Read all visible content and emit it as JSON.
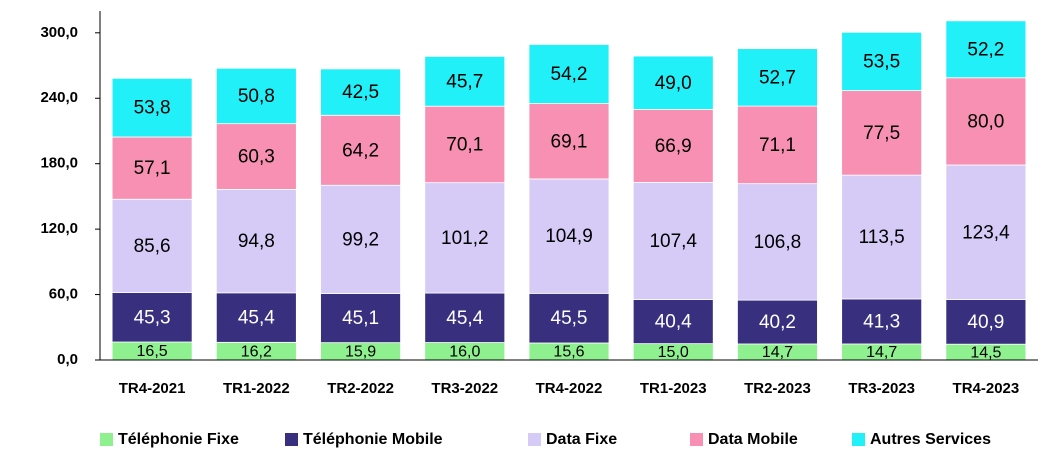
{
  "chart_data": {
    "type": "stacked_bar",
    "categories": [
      "TR4-2021",
      "TR1-2022",
      "TR2-2022",
      "TR3-2022",
      "TR4-2022",
      "TR1-2023",
      "TR2-2023",
      "TR3-2023",
      "TR4-2023"
    ],
    "series": [
      {
        "name": "Téléphonie Fixe",
        "color": "#8ef08e",
        "values": [
          16.5,
          16.2,
          15.9,
          16.0,
          15.6,
          15.0,
          14.7,
          14.7,
          14.5
        ],
        "value_labels": [
          "16,5",
          "16,2",
          "15,9",
          "16,0",
          "15,6",
          "15,0",
          "14,7",
          "14,7",
          "14,5"
        ]
      },
      {
        "name": "Téléphonie Mobile",
        "color": "#38307f",
        "values": [
          45.3,
          45.4,
          45.1,
          45.4,
          45.5,
          40.4,
          40.2,
          41.3,
          40.9
        ],
        "value_labels": [
          "45,3",
          "45,4",
          "45,1",
          "45,4",
          "45,5",
          "40,4",
          "40,2",
          "41,3",
          "40,9"
        ]
      },
      {
        "name": "Data Fixe",
        "color": "#d6cbf6",
        "values": [
          85.6,
          94.8,
          99.2,
          101.2,
          104.9,
          107.4,
          106.8,
          113.5,
          123.4
        ],
        "value_labels": [
          "85,6",
          "94,8",
          "99,2",
          "101,2",
          "104,9",
          "107,4",
          "106,8",
          "113,5",
          "123,4"
        ]
      },
      {
        "name": "Data Mobile",
        "color": "#f890b4",
        "values": [
          57.1,
          60.3,
          64.2,
          70.1,
          69.1,
          66.9,
          71.1,
          77.5,
          80.0
        ],
        "value_labels": [
          "57,1",
          "60,3",
          "64,2",
          "70,1",
          "69,1",
          "66,9",
          "71,1",
          "77,5",
          "80,0"
        ]
      },
      {
        "name": "Autres Services",
        "color": "#22f0f8",
        "values": [
          53.8,
          50.8,
          42.5,
          45.7,
          54.2,
          49.0,
          52.7,
          53.5,
          52.2
        ],
        "value_labels": [
          "53,8",
          "50,8",
          "42,5",
          "45,7",
          "54,2",
          "49,0",
          "52,7",
          "53,5",
          "52,2"
        ]
      }
    ],
    "ylim": [
      0,
      320
    ],
    "yticks": [
      {
        "value": 0,
        "label": "0,0"
      },
      {
        "value": 60,
        "label": "60,0"
      },
      {
        "value": 120,
        "label": "120,0"
      },
      {
        "value": 180,
        "label": "180,0"
      },
      {
        "value": 240,
        "label": "240,0"
      },
      {
        "value": 300,
        "label": "300,0"
      }
    ],
    "legend": "bottom"
  }
}
